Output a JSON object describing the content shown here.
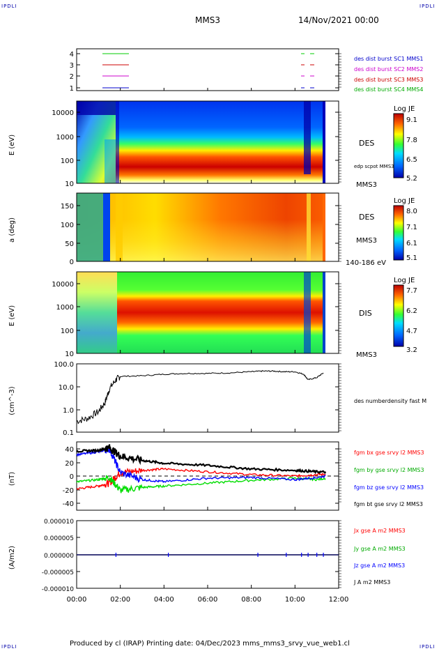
{
  "corners": {
    "tl": "IPDLI",
    "tr": "IPDLI",
    "bl": "IPDLI",
    "br": "IPDLI"
  },
  "header": {
    "spacecraft": "MMS3",
    "datetime": "14/Nov/2021 00:00"
  },
  "footer": {
    "text": "Produced by cl (IRAP)   Printing date: 04/Dec/2023   mms_mms3_srvy_vue_web1.cl"
  },
  "colors": {
    "mms1": "#0000cc",
    "mms2": "#cc00cc",
    "mms3": "#cc0000",
    "mms4": "#00cc00",
    "bx": "#ff0000",
    "by": "#00dd00",
    "bz": "#0000ff",
    "bt": "#000000"
  },
  "chart_data": [
    {
      "type": "timeline",
      "yticks": [
        "1",
        "2",
        "3",
        "4"
      ],
      "legend": [
        {
          "label": "des dist burst SC1 MMS1",
          "color": "#0000cc"
        },
        {
          "label": "des dist burst SC2 MMS2",
          "color": "#cc00cc"
        },
        {
          "label": "des dist burst SC3 MMS3",
          "color": "#cc0000"
        },
        {
          "label": "des dist burst SC4 MMS4",
          "color": "#00cc00"
        }
      ]
    },
    {
      "type": "heatmap",
      "panel": "electron energy spectrogram",
      "ylabel": "E (eV)",
      "yscale": "log",
      "ylim": [
        10,
        30000
      ],
      "yticks": [
        "10000",
        "1000",
        "100",
        "10"
      ],
      "label": "DES",
      "label2": "edp scpot MMS3",
      "label3": "MMS3",
      "colorbar": {
        "title": "Log JE",
        "ticks": [
          "9.1",
          "7.8",
          "6.5",
          "5.2"
        ],
        "range": [
          5.2,
          9.1
        ]
      }
    },
    {
      "type": "heatmap",
      "panel": "electron pitch angle",
      "ylabel": "a (deg)",
      "ylim": [
        0,
        180
      ],
      "yticks": [
        "150",
        "100",
        "50",
        "0"
      ],
      "label": "DES",
      "label2": "MMS3",
      "label3": "140-186 eV",
      "colorbar": {
        "title": "Log JE",
        "ticks": [
          "8.0",
          "7.1",
          "6.1",
          "5.1"
        ],
        "range": [
          5.1,
          8.0
        ]
      }
    },
    {
      "type": "heatmap",
      "panel": "ion energy spectrogram",
      "ylabel": "E (eV)",
      "yscale": "log",
      "ylim": [
        10,
        30000
      ],
      "yticks": [
        "10000",
        "1000",
        "100",
        "10"
      ],
      "label": "DIS",
      "label3": "MMS3",
      "colorbar": {
        "title": "Log JE",
        "ticks": [
          "7.7",
          "6.2",
          "4.7",
          "3.2"
        ],
        "range": [
          3.2,
          7.7
        ]
      }
    },
    {
      "type": "line",
      "panel": "density",
      "ylabel": "(cm^-3)",
      "yscale": "log",
      "ylim": [
        0.1,
        100
      ],
      "yticks": [
        "100.0",
        "10.0",
        "1.0",
        "0.1"
      ],
      "series_label": "des numberdensity fast M",
      "x": [
        0.0,
        0.5,
        1.0,
        1.3,
        1.5,
        1.8,
        2.0,
        3.0,
        4.0,
        5.0,
        6.0,
        7.0,
        8.0,
        8.5,
        9.0,
        9.5,
        10.0,
        10.4,
        10.6,
        11.0,
        11.3
      ],
      "values": [
        0.3,
        0.4,
        0.8,
        2.0,
        8.0,
        20,
        28,
        30,
        35,
        38,
        38,
        40,
        45,
        48,
        48,
        45,
        45,
        35,
        20,
        25,
        40
      ]
    },
    {
      "type": "line",
      "panel": "magnetic field",
      "ylabel": "(nT)",
      "ylim": [
        -48,
        48
      ],
      "yticks": [
        "40",
        "20",
        "0",
        "-20",
        "-40"
      ],
      "x": [
        0,
        1,
        1.5,
        2,
        3,
        4,
        6,
        8,
        10,
        11,
        12
      ],
      "series": [
        {
          "name": "fgm bx gse srvy l2 MMS3",
          "color": "#ff0000",
          "values": [
            -18,
            -14,
            -10,
            5,
            8,
            10,
            6,
            2,
            0,
            2,
            3
          ]
        },
        {
          "name": "fgm by gse srvy l2 MMS3",
          "color": "#00dd00",
          "values": [
            -8,
            -5,
            -2,
            -20,
            -16,
            -14,
            -10,
            -6,
            -3,
            -5,
            0
          ]
        },
        {
          "name": "fgm bz gse srvy l2 MMS3",
          "color": "#0000ff",
          "values": [
            30,
            34,
            38,
            5,
            -5,
            -8,
            -3,
            -2,
            -5,
            -2,
            3
          ]
        },
        {
          "name": "fgm bt gse srvy l2 MMS3",
          "color": "#000000",
          "values": [
            35,
            36,
            40,
            28,
            22,
            18,
            15,
            10,
            8,
            6,
            5
          ]
        }
      ]
    },
    {
      "type": "line",
      "panel": "current density",
      "ylabel": "(A/m2)",
      "ylim": [
        -0.0001,
        0.0001
      ],
      "yticks": [
        "0.000010",
        "0.000005",
        "0.000000",
        "-0.000005",
        "-0.000010"
      ],
      "series": [
        {
          "name": "Jx gse A m2 MMS3",
          "color": "#ff0000"
        },
        {
          "name": "Jy gse A m2 MMS3",
          "color": "#00dd00"
        },
        {
          "name": "Jz gse A m2 MMS3",
          "color": "#0000ff"
        },
        {
          "name": "J A m2 MMS3",
          "color": "#000000"
        }
      ]
    }
  ],
  "xaxis": {
    "ticks": [
      "00:00",
      "02:00",
      "04:00",
      "06:00",
      "08:00",
      "10:00",
      "12:00"
    ],
    "range_hours": [
      0,
      12
    ]
  }
}
